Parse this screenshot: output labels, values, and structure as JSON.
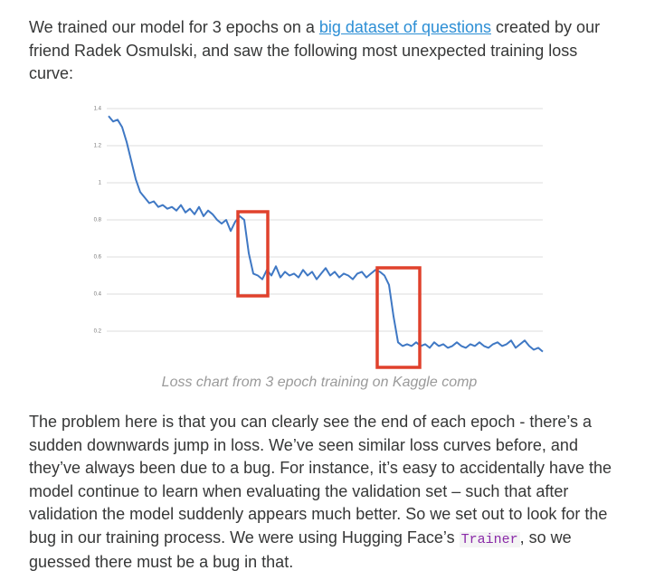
{
  "intro": {
    "before": "We trained our model for 3 epochs on a ",
    "link": "big dataset of questions",
    "after": " created by our friend Radek Osmulski, and saw the following most unexpected training loss curve:"
  },
  "chart_data": {
    "type": "line",
    "caption": "Loss chart from 3 epoch training on Kaggle comp",
    "series": [
      {
        "color": "#3f78c4",
        "values": [
          1.36,
          1.33,
          1.34,
          1.3,
          1.22,
          1.12,
          1.02,
          0.95,
          0.92,
          0.89,
          0.9,
          0.87,
          0.88,
          0.86,
          0.87,
          0.85,
          0.88,
          0.84,
          0.86,
          0.83,
          0.87,
          0.82,
          0.85,
          0.83,
          0.8,
          0.78,
          0.8,
          0.74,
          0.79,
          0.82,
          0.8,
          0.62,
          0.51,
          0.5,
          0.48,
          0.53,
          0.5,
          0.55,
          0.49,
          0.52,
          0.5,
          0.51,
          0.49,
          0.53,
          0.5,
          0.52,
          0.48,
          0.51,
          0.54,
          0.5,
          0.52,
          0.49,
          0.51,
          0.5,
          0.48,
          0.51,
          0.52,
          0.49,
          0.51,
          0.53,
          0.52,
          0.5,
          0.45,
          0.28,
          0.14,
          0.12,
          0.13,
          0.12,
          0.14,
          0.12,
          0.13,
          0.11,
          0.14,
          0.12,
          0.13,
          0.11,
          0.12,
          0.14,
          0.12,
          0.11,
          0.13,
          0.12,
          0.14,
          0.12,
          0.11,
          0.13,
          0.14,
          0.12,
          0.13,
          0.15,
          0.11,
          0.13,
          0.15,
          0.12,
          0.1,
          0.11,
          0.09
        ]
      }
    ],
    "ylim": [
      0,
      1.4
    ],
    "yticks": [
      0.2,
      0.4,
      0.6,
      0.8,
      1,
      1.2,
      1.4
    ],
    "grid": true
  },
  "body": {
    "before": "The problem here is that you can clearly see the end of each epoch - there’s a sudden downwards jump in loss. We’ve seen similar loss curves before, and they’ve always been due to a bug. For instance, it’s easy to accidentally have the model continue to learn when evaluating the validation set – such that after validation the model suddenly appears much better. So we set out to look for the bug in our training process. We were using Hugging Face’s ",
    "code": "Trainer",
    "after": ", so we guessed there must be a bug in that."
  }
}
